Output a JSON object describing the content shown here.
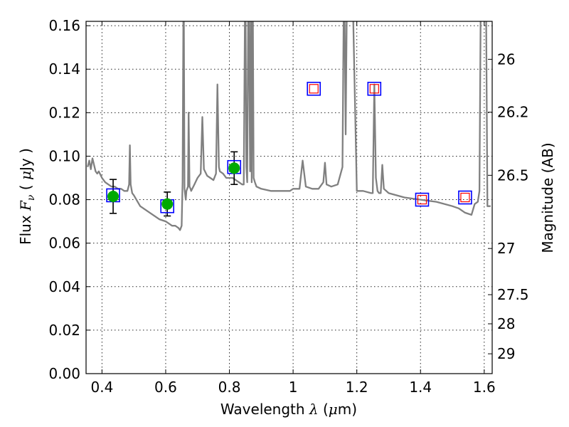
{
  "chart_data": {
    "type": "scatter",
    "xlabel": "Wavelength  λ (μm)",
    "ylabel": "Flux  Fν  ( μJy )",
    "y2label": "Magnitude (AB)",
    "xlim": [
      0.35,
      1.625
    ],
    "ylim": [
      0.0,
      0.162
    ],
    "grid": true,
    "x_ticks": [
      {
        "value": 0.4,
        "label": "0.4"
      },
      {
        "value": 0.6,
        "label": "0.6"
      },
      {
        "value": 0.8,
        "label": "0.8"
      },
      {
        "value": 1.0,
        "label": "1"
      },
      {
        "value": 1.2,
        "label": "1.2"
      },
      {
        "value": 1.4,
        "label": "1.4"
      },
      {
        "value": 1.6,
        "label": "1.6"
      }
    ],
    "y_ticks": [
      {
        "value": 0.0,
        "label": "0.00"
      },
      {
        "value": 0.02,
        "label": "0.02"
      },
      {
        "value": 0.04,
        "label": "0.04"
      },
      {
        "value": 0.06,
        "label": "0.06"
      },
      {
        "value": 0.08,
        "label": "0.08"
      },
      {
        "value": 0.1,
        "label": "0.10"
      },
      {
        "value": 0.12,
        "label": "0.12"
      },
      {
        "value": 0.14,
        "label": "0.14"
      },
      {
        "value": 0.16,
        "label": "0.16"
      }
    ],
    "y2_ticks": [
      {
        "value": 26,
        "label": "26"
      },
      {
        "value": 26.2,
        "label": "26.2"
      },
      {
        "value": 26.5,
        "label": "26.5"
      },
      {
        "value": 27,
        "label": "27"
      },
      {
        "value": 27.5,
        "label": "27.5"
      },
      {
        "value": 28,
        "label": "28"
      },
      {
        "value": 29,
        "label": "29"
      }
    ],
    "colors": {
      "sed": "#808080",
      "observed": "#00aa00",
      "model_box": "#0000ff",
      "prediction_box": "#ff0000",
      "errorbar": "#000000"
    },
    "sed_model": {
      "x": [
        0.355,
        0.36,
        0.365,
        0.37,
        0.375,
        0.38,
        0.385,
        0.39,
        0.4,
        0.41,
        0.42,
        0.43,
        0.44,
        0.45,
        0.46,
        0.47,
        0.48,
        0.485,
        0.4875,
        0.49,
        0.495,
        0.5,
        0.52,
        0.55,
        0.58,
        0.6,
        0.62,
        0.63,
        0.64,
        0.645,
        0.65,
        0.653,
        0.6563,
        0.659,
        0.663,
        0.665,
        0.67,
        0.672,
        0.675,
        0.678,
        0.68,
        0.69,
        0.7,
        0.71,
        0.715,
        0.72,
        0.73,
        0.74,
        0.75,
        0.758,
        0.7625,
        0.767,
        0.77,
        0.78,
        0.79,
        0.8,
        0.81,
        0.82,
        0.83,
        0.84,
        0.845,
        0.85,
        0.853,
        0.856,
        0.86,
        0.865,
        0.868,
        0.87,
        0.873,
        0.876,
        0.88,
        0.885,
        0.9,
        0.93,
        0.96,
        0.99,
        1.0,
        1.02,
        1.03,
        1.04,
        1.06,
        1.08,
        1.095,
        1.1,
        1.105,
        1.12,
        1.14,
        1.155,
        1.16,
        1.165,
        1.17,
        1.175,
        1.18,
        1.185,
        1.2,
        1.22,
        1.245,
        1.25,
        1.255,
        1.26,
        1.265,
        1.27,
        1.275,
        1.28,
        1.285,
        1.3,
        1.35,
        1.4,
        1.45,
        1.5,
        1.52,
        1.54,
        1.56,
        1.57,
        1.58,
        1.585,
        1.59,
        1.595,
        1.6,
        1.605,
        1.61,
        1.62
      ],
      "y": [
        0.095,
        0.098,
        0.094,
        0.099,
        0.096,
        0.093,
        0.092,
        0.093,
        0.09,
        0.088,
        0.087,
        0.086,
        0.086,
        0.085,
        0.085,
        0.084,
        0.084,
        0.087,
        0.105,
        0.087,
        0.083,
        0.082,
        0.077,
        0.074,
        0.071,
        0.07,
        0.068,
        0.068,
        0.067,
        0.066,
        0.068,
        0.088,
        0.19,
        0.085,
        0.08,
        0.084,
        0.086,
        0.12,
        0.086,
        0.085,
        0.084,
        0.087,
        0.09,
        0.092,
        0.118,
        0.094,
        0.091,
        0.09,
        0.089,
        0.092,
        0.133,
        0.095,
        0.093,
        0.092,
        0.09,
        0.09,
        0.09,
        0.089,
        0.088,
        0.087,
        0.087,
        0.19,
        0.095,
        0.088,
        0.19,
        0.093,
        0.19,
        0.088,
        0.19,
        0.09,
        0.088,
        0.086,
        0.085,
        0.084,
        0.084,
        0.084,
        0.085,
        0.085,
        0.098,
        0.086,
        0.085,
        0.085,
        0.088,
        0.097,
        0.087,
        0.086,
        0.087,
        0.095,
        0.19,
        0.11,
        0.19,
        0.19,
        0.19,
        0.19,
        0.084,
        0.084,
        0.083,
        0.083,
        0.133,
        0.09,
        0.084,
        0.083,
        0.083,
        0.096,
        0.085,
        0.083,
        0.081,
        0.08,
        0.079,
        0.077,
        0.076,
        0.074,
        0.073,
        0.078,
        0.079,
        0.084,
        0.19,
        0.19,
        0.19,
        0.19,
        0.077,
        0.077
      ]
    },
    "observed": {
      "x": [
        0.435,
        0.605,
        0.815
      ],
      "y": [
        0.0815,
        0.078,
        0.0945
      ],
      "yerr": [
        0.0078,
        0.0055,
        0.0075
      ]
    },
    "model_photometry": {
      "x": [
        0.435,
        0.605,
        0.815,
        1.065,
        1.255,
        1.405,
        1.54
      ],
      "y": [
        0.082,
        0.077,
        0.095,
        0.131,
        0.131,
        0.08,
        0.081
      ]
    },
    "predicted": {
      "x": [
        1.065,
        1.255,
        1.405,
        1.54
      ],
      "y": [
        0.131,
        0.131,
        0.08,
        0.081
      ]
    }
  }
}
